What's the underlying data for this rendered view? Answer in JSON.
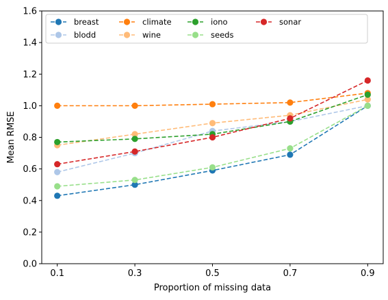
{
  "chart_data": {
    "type": "line",
    "title": "",
    "xlabel": "Proportion of missing data",
    "ylabel": "Mean RMSE",
    "x": [
      0.1,
      0.3,
      0.5,
      0.7,
      0.9
    ],
    "xticks": [
      "0.1",
      "0.3",
      "0.5",
      "0.7",
      "0.9"
    ],
    "xlim": [
      0.06,
      0.94
    ],
    "ylim": [
      0.0,
      1.6
    ],
    "yticks": [
      "0.0",
      "0.2",
      "0.4",
      "0.6",
      "0.8",
      "1.0",
      "1.2",
      "1.4",
      "1.6"
    ],
    "grid": false,
    "legend_position": "top",
    "legend_columns": 5,
    "series": [
      {
        "name": "breast",
        "color": "#1f77b4",
        "values": [
          0.43,
          0.5,
          0.59,
          0.69,
          1.0
        ]
      },
      {
        "name": "blodd",
        "color": "#aec7e8",
        "values": [
          0.58,
          0.7,
          0.84,
          0.9,
          1.0
        ]
      },
      {
        "name": "climate",
        "color": "#ff7f0e",
        "values": [
          1.0,
          1.0,
          1.01,
          1.02,
          1.08
        ]
      },
      {
        "name": "wine",
        "color": "#ffbb78",
        "values": [
          0.75,
          0.82,
          0.89,
          0.94,
          1.04
        ]
      },
      {
        "name": "iono",
        "color": "#2ca02c",
        "values": [
          0.77,
          0.79,
          0.82,
          0.9,
          1.07
        ]
      },
      {
        "name": "seeds",
        "color": "#98df8a",
        "values": [
          0.49,
          0.53,
          0.61,
          0.73,
          1.0
        ]
      },
      {
        "name": "sonar",
        "color": "#d62728",
        "values": [
          0.63,
          0.71,
          0.8,
          0.92,
          1.16
        ]
      }
    ]
  }
}
